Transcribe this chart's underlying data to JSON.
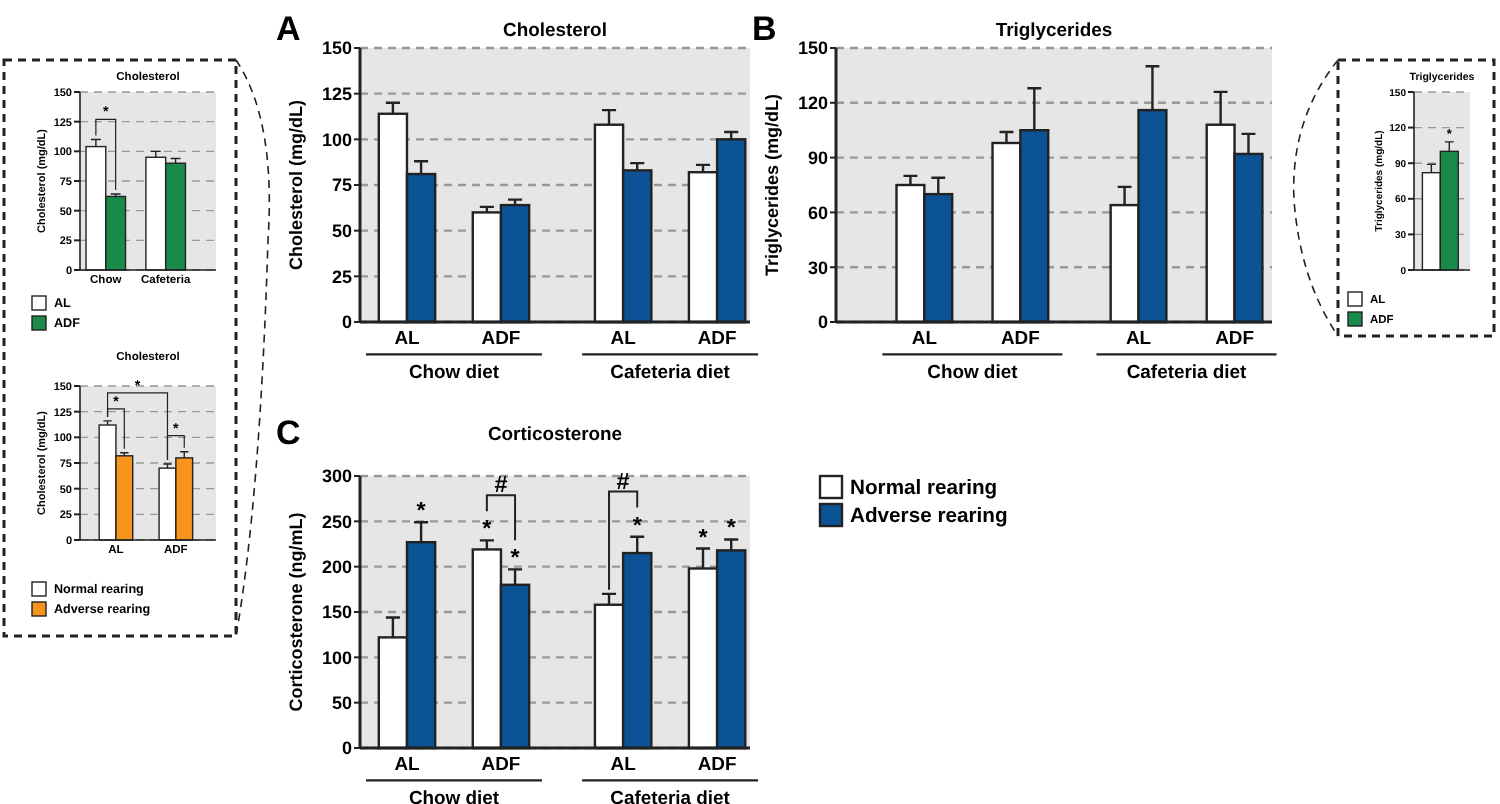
{
  "chart_data": [
    {
      "type": "bar",
      "title": "Cholesterol",
      "ylabel": "Cholesterol (mg/dL)",
      "categories": [
        "Chow",
        "Cafeteria"
      ],
      "ylim": [
        0,
        150
      ],
      "yticks": [
        0,
        25,
        50,
        75,
        100,
        125,
        150
      ],
      "grid": "y",
      "legend": "bottom",
      "annotations": [
        "*"
      ],
      "series": [
        {
          "name": "AL",
          "color": "#ffffff",
          "values": [
            104,
            95
          ],
          "errors": [
            6,
            5
          ]
        },
        {
          "name": "ADF",
          "color": "#1a8a4a",
          "values": [
            62,
            90
          ],
          "errors": [
            2,
            4
          ]
        }
      ]
    },
    {
      "type": "bar",
      "title": "Cholesterol",
      "ylabel": "Cholesterol (mg/dL)",
      "categories": [
        "AL",
        "ADF"
      ],
      "ylim": [
        0,
        150
      ],
      "yticks": [
        0,
        25,
        50,
        75,
        100,
        125,
        150
      ],
      "grid": "y",
      "legend": "bottom",
      "annotations": [
        {
          "text": "*",
          "x": "AL",
          "y": 112
        },
        "*",
        "*"
      ],
      "series": [
        {
          "name": "Normal rearing",
          "color": "#ffffff",
          "values": [
            112,
            70
          ],
          "errors": [
            4,
            4
          ]
        },
        {
          "name": "Adverse rearing",
          "color": "#f7941d",
          "values": [
            82,
            80
          ],
          "errors": [
            3,
            6
          ]
        }
      ]
    },
    {
      "type": "bar",
      "title": "Cholesterol",
      "ylabel": "Cholesterol (mg/dL)",
      "categories": [
        "AL",
        "ADF",
        "AL",
        "ADF"
      ],
      "ylim": [
        0,
        150
      ],
      "yticks": [
        0,
        25,
        50,
        75,
        100,
        125,
        150
      ],
      "grid": "y",
      "annotations": [
        "A",
        "Chow diet",
        "Cafeteria diet"
      ],
      "series": [
        {
          "color": "#ffffff",
          "values": [
            114,
            60,
            108,
            82
          ],
          "errors": [
            6,
            3,
            8,
            4
          ]
        },
        {
          "color": "#0b5394",
          "values": [
            81,
            64,
            83,
            100
          ],
          "errors": [
            7,
            3,
            4,
            4
          ]
        }
      ]
    },
    {
      "type": "bar",
      "title": "Triglycerides",
      "ylabel": "Triglycerides (mg/dL)",
      "categories": [
        "AL",
        "ADF",
        "AL",
        "ADF"
      ],
      "ylim": [
        0,
        150
      ],
      "yticks": [
        0,
        30,
        60,
        90,
        120,
        150
      ],
      "grid": "y",
      "annotations": [
        "B",
        "Chow diet",
        "Cafeteria diet"
      ],
      "series": [
        {
          "color": "#ffffff",
          "values": [
            75,
            98,
            64,
            108
          ],
          "errors": [
            5,
            6,
            10,
            18
          ]
        },
        {
          "color": "#0b5394",
          "values": [
            70,
            105,
            116,
            92
          ],
          "errors": [
            9,
            23,
            24,
            11
          ]
        }
      ]
    },
    {
      "type": "bar",
      "title": "Corticosterone",
      "ylabel": "Corticosterone (ng/mL)",
      "categories": [
        "AL",
        "ADF",
        "AL",
        "ADF"
      ],
      "ylim": [
        0,
        300
      ],
      "yticks": [
        0,
        50,
        100,
        150,
        200,
        250,
        300
      ],
      "grid": "y",
      "legend": "right",
      "annotations": [
        "C",
        "Chow diet",
        "Cafeteria diet",
        {
          "text": "#",
          "y": 219
        },
        {
          "text": "#",
          "y": 215
        }
      ],
      "series": [
        {
          "name": "Normal rearing",
          "color": "#ffffff",
          "values": [
            122,
            219,
            158,
            198
          ],
          "errors": [
            22,
            10,
            12,
            22
          ],
          "value_labels": [
            null,
            "*",
            null,
            "*"
          ]
        },
        {
          "name": "Adverse rearing",
          "color": "#0b5394",
          "values": [
            227,
            180,
            215,
            218
          ],
          "errors": [
            22,
            17,
            18,
            12
          ],
          "value_labels": [
            "*",
            "*",
            "*",
            "*"
          ]
        }
      ]
    },
    {
      "type": "bar",
      "title": "Triglycerides",
      "ylabel": "Triglycerides (mg/dL)",
      "categories": [
        null
      ],
      "ylim": [
        0,
        150
      ],
      "yticks": [
        0,
        30,
        60,
        90,
        120,
        150
      ],
      "grid": "y",
      "legend": "bottom",
      "series": [
        {
          "name": "AL",
          "color": "#ffffff",
          "values": [
            82
          ],
          "errors": [
            7
          ]
        },
        {
          "name": "ADF",
          "color": "#1a8a4a",
          "values": [
            100
          ],
          "errors": [
            8
          ],
          "value_labels": [
            "*"
          ]
        }
      ]
    }
  ]
}
